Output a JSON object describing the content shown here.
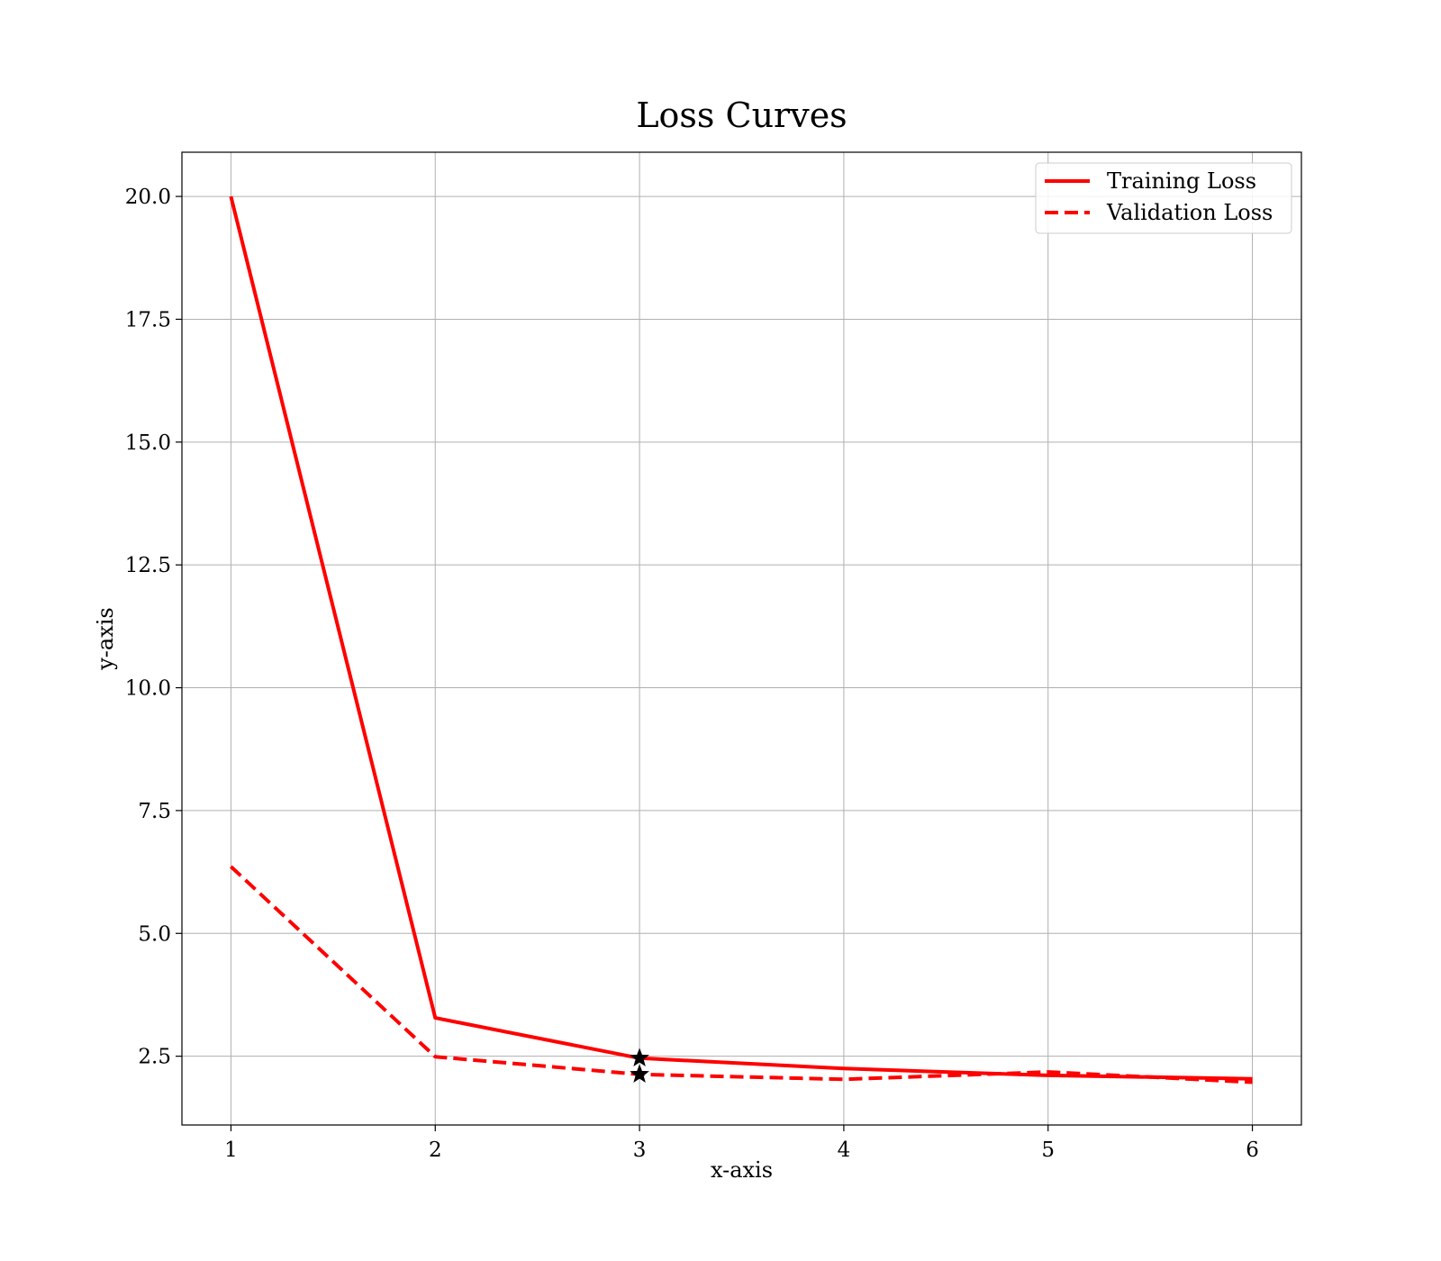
{
  "chart_data": {
    "type": "line",
    "title": "Loss Curves",
    "xlabel": "x-axis",
    "ylabel": "y-axis",
    "x": [
      1,
      2,
      3,
      4,
      5,
      6
    ],
    "xlim": [
      0.76,
      6.24
    ],
    "ylim": [
      1.1,
      20.9
    ],
    "xticks": [
      "1",
      "2",
      "3",
      "4",
      "5",
      "6"
    ],
    "yticks": [
      "2.5",
      "5.0",
      "7.5",
      "10.0",
      "12.5",
      "15.0",
      "17.5",
      "20.0"
    ],
    "grid": true,
    "legend_position": "top-right",
    "series": [
      {
        "name": "Training Loss",
        "values": [
          20.0,
          3.28,
          2.46,
          2.25,
          2.11,
          2.04
        ],
        "color": "#ff0000",
        "style": "solid"
      },
      {
        "name": "Validation Loss",
        "values": [
          6.36,
          2.49,
          2.13,
          2.03,
          2.18,
          1.97
        ],
        "color": "#ff0000",
        "style": "dashed"
      }
    ],
    "annotations": [
      {
        "marker": "star",
        "x": 3,
        "y": 2.46,
        "color": "#000000"
      },
      {
        "marker": "star",
        "x": 3,
        "y": 2.13,
        "color": "#000000"
      }
    ]
  }
}
